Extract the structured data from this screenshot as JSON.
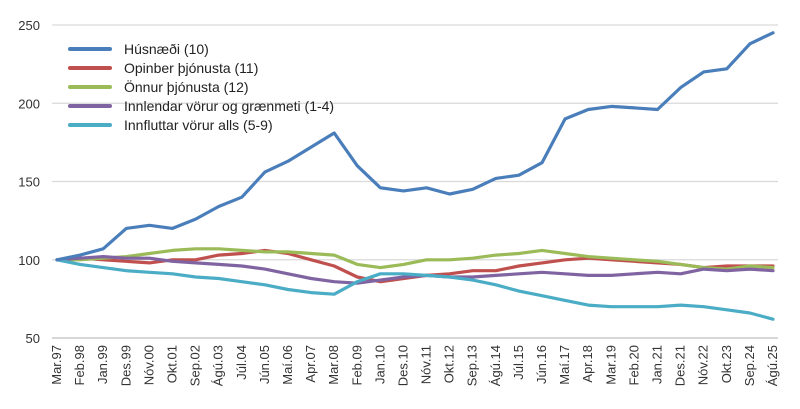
{
  "chart_data": {
    "type": "line",
    "title": "",
    "xlabel": "",
    "ylabel": "",
    "ylim": [
      50,
      250
    ],
    "yticks": [
      50,
      100,
      150,
      200,
      250
    ],
    "grid": true,
    "legend_placement": "top-left",
    "x": [
      "Mar.97",
      "Feb.98",
      "Jan.99",
      "Des.99",
      "Nóv.00",
      "Okt.01",
      "Sep.02",
      "Ágú.03",
      "Júl.04",
      "Jún.05",
      "Maí.06",
      "Apr.07",
      "Mar.08",
      "Feb.09",
      "Jan.10",
      "Des.10",
      "Nóv.11",
      "Okt.12",
      "Sep.13",
      "Ágú.14",
      "Júl.15",
      "Jún.16",
      "Maí.17",
      "Apr.18",
      "Mar.19",
      "Feb.20",
      "Jan.21",
      "Des.21",
      "Nóv.22",
      "Okt.23",
      "Sep.24",
      "Ágú.25"
    ],
    "series": [
      {
        "name": "Húsnæði (10)",
        "color": "#4a7ebb",
        "values": [
          100,
          103,
          107,
          120,
          122,
          120,
          126,
          134,
          140,
          156,
          163,
          172,
          181,
          160,
          146,
          144,
          146,
          142,
          145,
          152,
          154,
          162,
          190,
          196,
          198,
          197,
          196,
          210,
          220,
          222,
          238,
          245
        ]
      },
      {
        "name": "Opinber þjónusta (11)",
        "color": "#c0504d",
        "values": [
          100,
          101,
          100,
          99,
          98,
          100,
          100,
          103,
          104,
          106,
          104,
          100,
          96,
          89,
          86,
          88,
          90,
          91,
          93,
          93,
          96,
          98,
          100,
          101,
          100,
          99,
          98,
          97,
          95,
          96,
          96,
          96
        ]
      },
      {
        "name": "Önnur þjónusta (12)",
        "color": "#9bbb59",
        "values": [
          100,
          100,
          101,
          102,
          104,
          106,
          107,
          107,
          106,
          105,
          105,
          104,
          103,
          97,
          95,
          97,
          100,
          100,
          101,
          103,
          104,
          106,
          104,
          102,
          101,
          100,
          99,
          97,
          95,
          94,
          96,
          95
        ]
      },
      {
        "name": "Innlendar vörur og grænmeti (1-4)",
        "color": "#8064a2",
        "values": [
          100,
          101,
          102,
          101,
          101,
          99,
          98,
          97,
          96,
          94,
          91,
          88,
          86,
          85,
          87,
          89,
          90,
          89,
          89,
          90,
          91,
          92,
          91,
          90,
          90,
          91,
          92,
          91,
          94,
          93,
          94,
          93
        ]
      },
      {
        "name": "Innfluttar vörur alls (5-9)",
        "color": "#4bacc6",
        "values": [
          100,
          97,
          95,
          93,
          92,
          91,
          89,
          88,
          86,
          84,
          81,
          79,
          78,
          86,
          91,
          91,
          90,
          89,
          87,
          84,
          80,
          77,
          74,
          71,
          70,
          70,
          70,
          71,
          70,
          68,
          66,
          62
        ]
      }
    ]
  }
}
